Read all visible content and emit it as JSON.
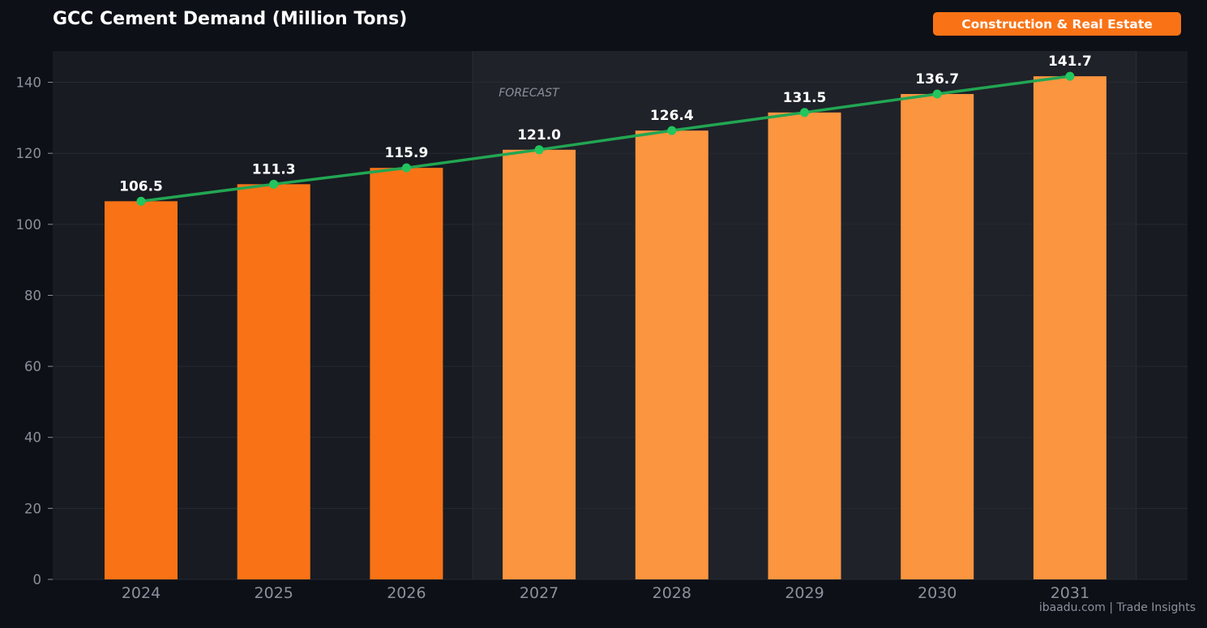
{
  "header": {
    "title": "GCC Cement Demand (Million Tons)",
    "badge": "Construction & Real Estate"
  },
  "footer": {
    "source": "ibaadu.com | Trade Insights"
  },
  "colors": {
    "background": "#0d1017",
    "plot_background": "#181b22",
    "forecast_band": "#1f2229",
    "actual_bar": "#f97316",
    "forecast_bar": "#fb953f",
    "trend_line": "#22a652",
    "badge": "#f97316"
  },
  "chart_data": {
    "type": "bar",
    "title": "GCC Cement Demand (Million Tons)",
    "categories": [
      "2024",
      "2025",
      "2026",
      "2027",
      "2028",
      "2029",
      "2030",
      "2031"
    ],
    "values": [
      106.5,
      111.3,
      115.9,
      121.0,
      126.4,
      131.5,
      136.7,
      141.7
    ],
    "data_labels": [
      "106.5",
      "111.3",
      "115.9",
      "121.0",
      "126.4",
      "131.5",
      "136.7",
      "141.7"
    ],
    "forecast_from": "2027",
    "forecast_to": "2031",
    "forecast_label": "FORECAST",
    "overlay_line": {
      "type": "line",
      "values": [
        106.5,
        111.3,
        115.9,
        121.0,
        126.4,
        131.5,
        136.7,
        141.7
      ]
    },
    "ylim": [
      0,
      148.8
    ],
    "yticks": [
      0,
      20,
      40,
      60,
      80,
      100,
      120,
      140
    ],
    "xlabel": "",
    "ylabel": "",
    "grid": true
  }
}
